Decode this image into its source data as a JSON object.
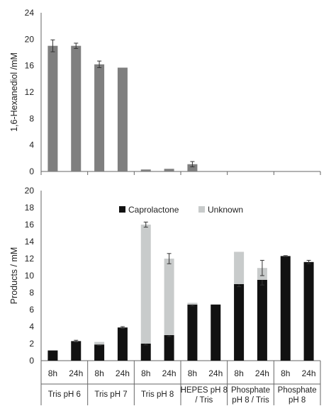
{
  "chart_data": [
    {
      "type": "bar",
      "ylabel": "1,6-Hexanediol /mM",
      "ylim": [
        0,
        24
      ],
      "yticks": [
        0,
        4,
        8,
        12,
        16,
        20,
        24
      ],
      "categories": [
        "Tris pH 6 8h",
        "Tris pH 6 24h",
        "Tris pH 7 8h",
        "Tris pH 7 24h",
        "Tris pH 8 8h",
        "Tris pH 8 24h",
        "HEPES pH 8 / Tris 8h",
        "HEPES pH 8 / Tris 24h",
        "Phosphate pH 8 / Tris 8h",
        "Phosphate pH 8 / Tris 24h",
        "Phosphate pH 8 8h",
        "Phosphate pH 8 24h"
      ],
      "values": [
        19.0,
        19.0,
        16.2,
        15.7,
        0.3,
        0.4,
        1.1,
        0,
        0,
        0,
        0,
        0
      ],
      "errors": [
        0.9,
        0.4,
        0.5,
        0.0,
        0.0,
        0.0,
        0.4,
        0,
        0,
        0,
        0,
        0
      ],
      "color": "#7f7f7f",
      "grid": false
    },
    {
      "type": "bar",
      "stacked": true,
      "ylabel": "Products / mM",
      "ylim": [
        0,
        20
      ],
      "yticks": [
        0,
        2,
        4,
        6,
        8,
        10,
        12,
        14,
        16,
        18,
        20
      ],
      "x_ticks": [
        "8h",
        "24h",
        "8h",
        "24h",
        "8h",
        "24h",
        "8h",
        "24h",
        "8h",
        "24h",
        "8h",
        "24h"
      ],
      "groups": [
        "Tris pH 6",
        "Tris pH 7",
        "Tris pH 8",
        "HEPES pH 8\n/ Tris",
        "Phosphate\npH 8 / Tris",
        "Phosphate\npH 8"
      ],
      "legend_position": "top",
      "series": [
        {
          "name": "Caprolactone",
          "color": "#111111",
          "values": [
            1.2,
            2.3,
            1.9,
            3.9,
            2.0,
            3.0,
            6.6,
            6.6,
            9.0,
            9.5,
            12.3,
            11.6
          ],
          "errors": [
            0.0,
            0.1,
            0.1,
            0.1,
            0.15,
            0.15,
            0.15,
            0.0,
            0.3,
            0.6,
            0.05,
            0.2
          ]
        },
        {
          "name": "Unknown",
          "color": "#c8cbcb",
          "values": [
            0,
            0,
            0.3,
            0,
            14.0,
            9.0,
            0.2,
            0,
            3.8,
            1.4,
            0,
            0
          ],
          "errors": [
            0,
            0,
            0,
            0,
            0.3,
            0.6,
            0,
            0,
            0,
            0.9,
            0,
            0
          ]
        }
      ],
      "grid": false
    }
  ]
}
